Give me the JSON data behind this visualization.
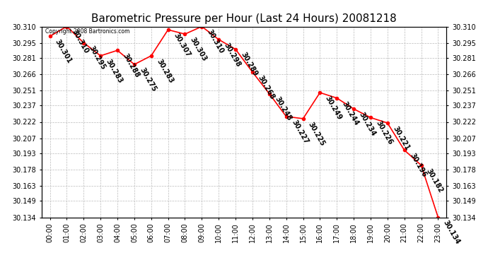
{
  "title": "Barometric Pressure per Hour (Last 24 Hours) 20081218",
  "copyright": "Copyright 2008 Bartronics.com",
  "hours": [
    "00:00",
    "01:00",
    "02:00",
    "03:00",
    "04:00",
    "05:00",
    "06:00",
    "07:00",
    "08:00",
    "09:00",
    "10:00",
    "11:00",
    "12:00",
    "13:00",
    "14:00",
    "15:00",
    "16:00",
    "17:00",
    "18:00",
    "19:00",
    "20:00",
    "21:00",
    "22:00",
    "23:00"
  ],
  "values": [
    30.301,
    30.31,
    30.295,
    30.283,
    30.288,
    30.275,
    30.283,
    30.307,
    30.303,
    30.31,
    30.298,
    30.289,
    30.268,
    30.248,
    30.227,
    30.225,
    30.249,
    30.244,
    30.234,
    30.226,
    30.221,
    30.196,
    30.182,
    30.134
  ],
  "ylim_min": 30.134,
  "ylim_max": 30.31,
  "yticks": [
    30.134,
    30.149,
    30.163,
    30.178,
    30.193,
    30.207,
    30.222,
    30.237,
    30.251,
    30.266,
    30.281,
    30.295,
    30.31
  ],
  "line_color": "red",
  "marker_color": "red",
  "background_color": "white",
  "grid_color": "#bbbbbb",
  "title_fontsize": 11,
  "label_fontsize": 7,
  "annotation_fontsize": 7,
  "annotation_rotation": -60
}
